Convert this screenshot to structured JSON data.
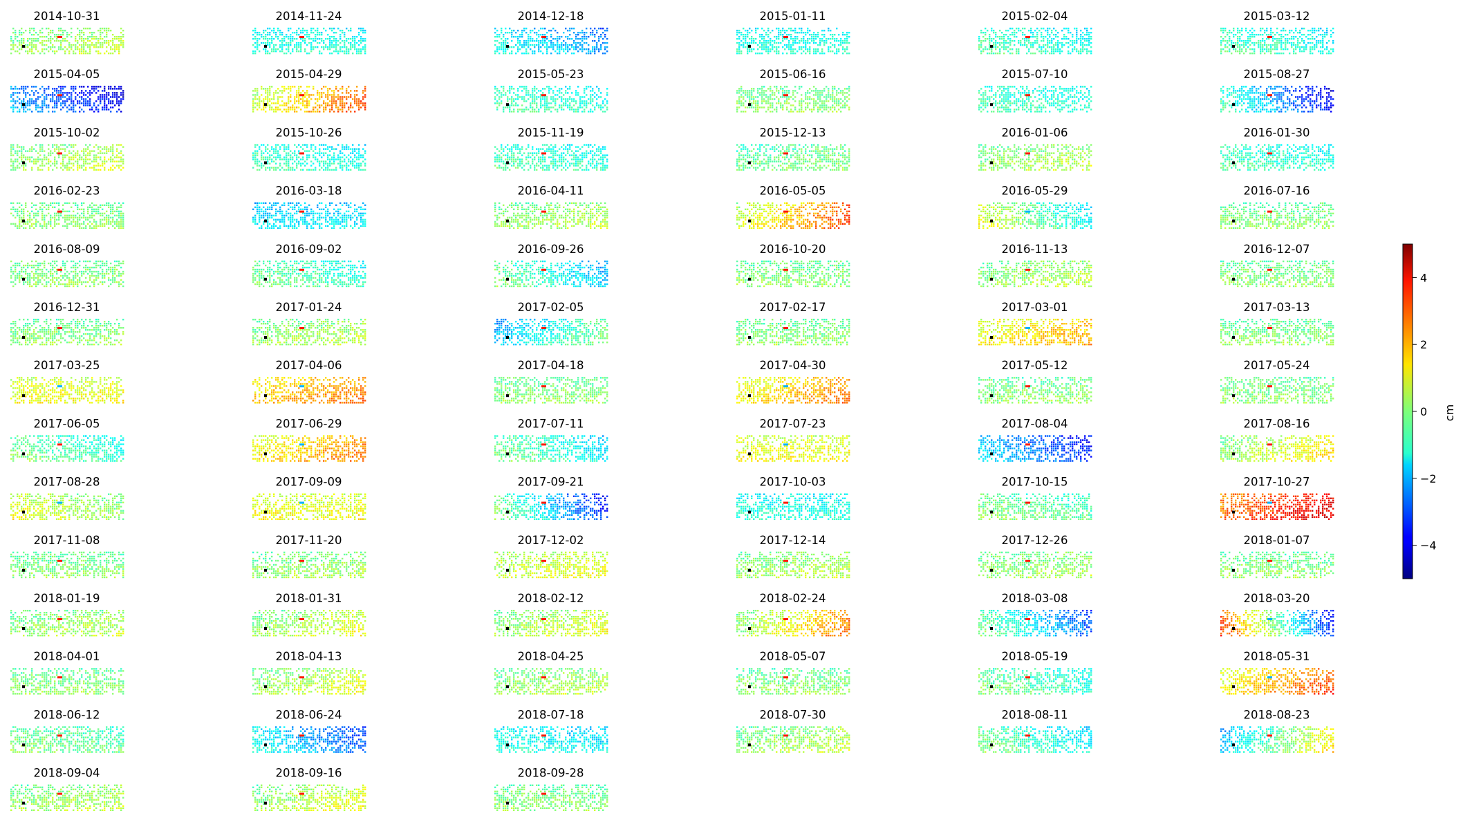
{
  "chart_data": {
    "type": "heatmap",
    "colormap": "jet",
    "grid": "off",
    "rows": 14,
    "cols": 6,
    "panels": [
      "2014-10-31",
      "2014-11-24",
      "2014-12-18",
      "2015-01-11",
      "2015-02-04",
      "2015-03-12",
      "2015-04-05",
      "2015-04-29",
      "2015-05-23",
      "2015-06-16",
      "2015-07-10",
      "2015-08-27",
      "2015-10-02",
      "2015-10-26",
      "2015-11-19",
      "2015-12-13",
      "2016-01-06",
      "2016-01-30",
      "2016-02-23",
      "2016-03-18",
      "2016-04-11",
      "2016-05-05",
      "2016-05-29",
      "2016-07-16",
      "2016-08-09",
      "2016-09-02",
      "2016-09-26",
      "2016-10-20",
      "2016-11-13",
      "2016-12-07",
      "2016-12-31",
      "2017-01-24",
      "2017-02-05",
      "2017-02-17",
      "2017-03-01",
      "2017-03-13",
      "2017-03-25",
      "2017-04-06",
      "2017-04-18",
      "2017-04-30",
      "2017-05-12",
      "2017-05-24",
      "2017-06-05",
      "2017-06-29",
      "2017-07-11",
      "2017-07-23",
      "2017-08-04",
      "2017-08-16",
      "2017-08-28",
      "2017-09-09",
      "2017-09-21",
      "2017-10-03",
      "2017-10-15",
      "2017-10-27",
      "2017-11-08",
      "2017-11-20",
      "2017-12-02",
      "2017-12-14",
      "2017-12-26",
      "2018-01-07",
      "2018-01-19",
      "2018-01-31",
      "2018-02-12",
      "2018-02-24",
      "2018-03-08",
      "2018-03-20",
      "2018-04-01",
      "2018-04-13",
      "2018-04-25",
      "2018-05-07",
      "2018-05-19",
      "2018-05-31",
      "2018-06-12",
      "2018-06-24",
      "2018-07-18",
      "2018-07-30",
      "2018-08-11",
      "2018-08-23",
      "2018-09-04",
      "2018-09-16",
      "2018-09-28"
    ],
    "panel_trends": [
      [
        0,
        0.6
      ],
      [
        -1,
        -1
      ],
      [
        -1,
        -2.5
      ],
      [
        -1,
        -1
      ],
      [
        -0.5,
        -1.2
      ],
      [
        -0.5,
        -1.2
      ],
      [
        -2,
        -4
      ],
      [
        0.5,
        3
      ],
      [
        -0.5,
        -1
      ],
      [
        0,
        0
      ],
      [
        -0.5,
        -1
      ],
      [
        -0.5,
        -4
      ],
      [
        0,
        0.7
      ],
      [
        -0.5,
        -1.2
      ],
      [
        -0.5,
        -1
      ],
      [
        -0.3,
        0
      ],
      [
        0,
        0.5
      ],
      [
        -0.5,
        -1
      ],
      [
        0,
        0
      ],
      [
        -1.5,
        -1.5
      ],
      [
        0,
        0.5
      ],
      [
        0.5,
        3
      ],
      [
        1,
        -1.5
      ],
      [
        0,
        0
      ],
      [
        0,
        0
      ],
      [
        0,
        -1
      ],
      [
        0,
        -2
      ],
      [
        0,
        0
      ],
      [
        0,
        0.5
      ],
      [
        0,
        0
      ],
      [
        0,
        0
      ],
      [
        0,
        0.5
      ],
      [
        -2,
        0
      ],
      [
        0,
        0
      ],
      [
        1,
        2
      ],
      [
        0,
        0
      ],
      [
        1,
        1
      ],
      [
        1.5,
        2.5
      ],
      [
        0,
        0
      ],
      [
        1,
        2.5
      ],
      [
        0,
        0
      ],
      [
        0,
        0
      ],
      [
        0,
        -1
      ],
      [
        1,
        2.5
      ],
      [
        0,
        -1.5
      ],
      [
        1,
        1
      ],
      [
        -1.5,
        -3.5
      ],
      [
        0,
        1.5
      ],
      [
        1,
        0
      ],
      [
        1,
        1
      ],
      [
        0,
        -3.5
      ],
      [
        -1,
        -1
      ],
      [
        0,
        -0.5
      ],
      [
        2.5,
        4
      ],
      [
        0,
        0
      ],
      [
        0,
        0.3
      ],
      [
        0.5,
        1
      ],
      [
        0,
        0.5
      ],
      [
        0,
        0.3
      ],
      [
        0,
        0
      ],
      [
        0,
        0.5
      ],
      [
        0,
        1
      ],
      [
        0,
        1
      ],
      [
        0,
        2.5
      ],
      [
        0,
        -3
      ],
      [
        3,
        -3.5
      ],
      [
        0,
        0
      ],
      [
        0,
        1
      ],
      [
        0,
        0.5
      ],
      [
        0,
        0
      ],
      [
        0,
        -1
      ],
      [
        1,
        3
      ],
      [
        0,
        -0.5
      ],
      [
        -1,
        -3
      ],
      [
        -1,
        -1.5
      ],
      [
        0,
        0.5
      ],
      [
        0,
        -1.5
      ],
      [
        -2,
        1.5
      ],
      [
        0,
        0.5
      ],
      [
        0,
        1
      ],
      [
        0,
        0
      ]
    ],
    "colorbar": {
      "label": "cm",
      "vmin": -5,
      "vmax": 5,
      "ticks": [
        "4",
        "2",
        "0",
        "−2",
        "−4"
      ],
      "tick_values": [
        4,
        2,
        0,
        -2,
        -4
      ]
    }
  }
}
